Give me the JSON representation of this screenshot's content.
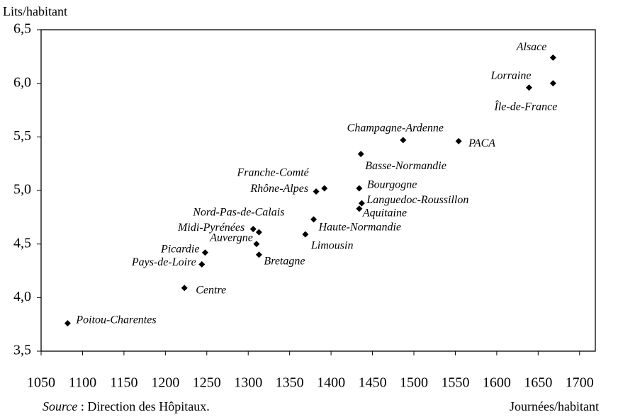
{
  "chart_data": {
    "type": "scatter",
    "y_label": "Lits/habitant",
    "x_label": "Journées/habitant",
    "source_label": "Source",
    "source_text": " : Direction des Hôpitaux.",
    "labels": [
      "Alsace",
      "Île-de-France",
      "Lorraine",
      "Champagne-Ardenne",
      "PACA",
      "Basse-Normandie",
      "Bourgogne",
      "Franche-Comté",
      "Rhône-Alpes",
      "Languedoc-Roussillon",
      "Aquitaine",
      "Haute-Normandie",
      "Limousin",
      "Nord-Pas-de-Calais",
      "Midi-Pyrénées",
      "Auvergne",
      "Bretagne",
      "Picardie",
      "Pays-de-Loire",
      "Centre",
      "Poitou-Charentes"
    ],
    "x": [
      1668,
      1668,
      1639,
      1487,
      1554,
      1436,
      1434,
      1392,
      1382,
      1437,
      1434,
      1379,
      1369,
      1313,
      1306,
      1310,
      1313,
      1248,
      1244,
      1223,
      1082
    ],
    "values": [
      6.24,
      6.0,
      5.96,
      5.47,
      5.46,
      5.34,
      5.02,
      5.02,
      4.99,
      4.88,
      4.83,
      4.73,
      4.59,
      4.61,
      4.64,
      4.5,
      4.4,
      4.42,
      4.31,
      4.09,
      3.76
    ],
    "color": "#000000",
    "xlim": [
      1050,
      1719
    ],
    "ylim": [
      3.5,
      6.5
    ],
    "xticks": [
      1050,
      1100,
      1150,
      1200,
      1250,
      1300,
      1350,
      1400,
      1450,
      1500,
      1550,
      1600,
      1650,
      1700
    ],
    "yticks": [
      {
        "value": 3.5,
        "label": "3,5"
      },
      {
        "value": 4.0,
        "label": "4,0"
      },
      {
        "value": 4.5,
        "label": "4,5"
      },
      {
        "value": 5.0,
        "label": "5,0"
      },
      {
        "value": 5.5,
        "label": "5,5"
      },
      {
        "value": 6.0,
        "label": "6,0"
      },
      {
        "value": 6.5,
        "label": "6,5"
      }
    ],
    "grid": false
  }
}
